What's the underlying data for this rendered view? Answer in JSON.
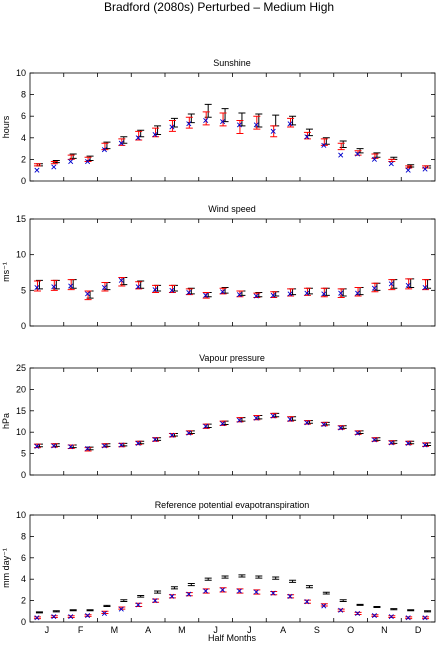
{
  "figure": {
    "title": "Bradford (2080s) Perturbed – Medium High",
    "xlabel": "Half Months",
    "month_labels": [
      "J",
      "F",
      "M",
      "A",
      "M",
      "J",
      "J",
      "A",
      "S",
      "O",
      "N",
      "D"
    ]
  },
  "colors": {
    "black_bar": "#000000",
    "red_bar": "#ff0000",
    "blue_cross": "#0000cc"
  },
  "chart_data": [
    {
      "type": "errorbar",
      "title": "Sunshine",
      "ylabel": "hours",
      "ylim": [
        0,
        10
      ],
      "yticks": [
        "0",
        "2",
        "4",
        "6",
        "8",
        "10"
      ],
      "x": [
        1,
        2,
        3,
        4,
        5,
        6,
        7,
        8,
        9,
        10,
        11,
        12,
        13,
        14,
        15,
        16,
        17,
        18,
        19,
        20,
        21,
        22,
        23,
        24
      ],
      "series": [
        {
          "name": "",
          "style": "black-errorbar",
          "values": [
            1.5,
            1.8,
            2.3,
            2.1,
            3.3,
            3.8,
            4.4,
            4.7,
            5.4,
            5.8,
            6.5,
            6.1,
            5.7,
            5.6,
            5.6,
            5.6,
            4.5,
            3.7,
            3.4,
            2.8,
            2.4,
            2.1,
            1.4,
            1.3
          ],
          "err": [
            0.1,
            0.1,
            0.2,
            0.2,
            0.3,
            0.3,
            0.3,
            0.4,
            0.4,
            0.4,
            0.6,
            0.6,
            0.6,
            0.6,
            0.5,
            0.4,
            0.3,
            0.3,
            0.3,
            0.2,
            0.2,
            0.1,
            0.1,
            0.1
          ]
        },
        {
          "name": "",
          "style": "red-errorbar",
          "values": [
            1.5,
            1.7,
            2.2,
            2.0,
            3.2,
            3.6,
            4.2,
            4.5,
            5.1,
            5.4,
            5.8,
            5.7,
            5.0,
            5.4,
            4.6,
            5.4,
            4.2,
            3.6,
            3.2,
            2.6,
            2.3,
            1.9,
            1.3,
            1.3
          ],
          "err": [
            0.1,
            0.1,
            0.2,
            0.2,
            0.3,
            0.3,
            0.4,
            0.4,
            0.5,
            0.5,
            0.6,
            0.6,
            0.6,
            0.6,
            0.5,
            0.4,
            0.3,
            0.3,
            0.3,
            0.2,
            0.2,
            0.1,
            0.1,
            0.1
          ]
        },
        {
          "name": "",
          "style": "blue-cross",
          "values": [
            1.0,
            1.3,
            1.8,
            1.8,
            2.9,
            3.5,
            4.0,
            4.3,
            5.0,
            5.3,
            5.6,
            5.5,
            5.2,
            5.2,
            4.6,
            5.3,
            4.1,
            3.3,
            2.4,
            2.5,
            2.0,
            1.6,
            1.0,
            1.1
          ]
        }
      ]
    },
    {
      "type": "errorbar",
      "title": "Wind speed",
      "ylabel": "ms⁻¹",
      "ylim": [
        0,
        15
      ],
      "yticks": [
        "0",
        "5",
        "10",
        "15"
      ],
      "x": [
        1,
        2,
        3,
        4,
        5,
        6,
        7,
        8,
        9,
        10,
        11,
        12,
        13,
        14,
        15,
        16,
        17,
        18,
        19,
        20,
        21,
        22,
        23,
        24
      ],
      "series": [
        {
          "name": "",
          "style": "black-errorbar",
          "values": [
            5.8,
            5.8,
            5.9,
            4.4,
            5.6,
            6.3,
            5.8,
            5.3,
            5.3,
            4.9,
            4.4,
            5.0,
            4.6,
            4.4,
            4.5,
            4.8,
            4.9,
            4.8,
            4.7,
            4.9,
            5.5,
            5.9,
            6.0,
            5.9
          ],
          "err": [
            0.6,
            0.6,
            0.6,
            0.5,
            0.5,
            0.5,
            0.5,
            0.4,
            0.4,
            0.4,
            0.3,
            0.4,
            0.3,
            0.3,
            0.3,
            0.4,
            0.4,
            0.5,
            0.5,
            0.5,
            0.5,
            0.6,
            0.6,
            0.6
          ]
        },
        {
          "name": "",
          "style": "red-errorbar",
          "values": [
            5.6,
            5.7,
            5.8,
            4.3,
            5.5,
            6.2,
            5.7,
            5.2,
            5.2,
            4.8,
            4.3,
            4.9,
            4.5,
            4.3,
            4.4,
            4.7,
            4.8,
            4.7,
            4.6,
            4.8,
            5.4,
            5.8,
            5.9,
            5.8
          ],
          "err": [
            0.7,
            0.7,
            0.7,
            0.6,
            0.6,
            0.6,
            0.5,
            0.5,
            0.5,
            0.4,
            0.4,
            0.4,
            0.4,
            0.3,
            0.4,
            0.5,
            0.5,
            0.6,
            0.6,
            0.6,
            0.6,
            0.7,
            0.7,
            0.7
          ]
        },
        {
          "name": "",
          "style": "blue-cross",
          "values": [
            5.4,
            5.5,
            5.6,
            4.5,
            5.4,
            6.4,
            5.5,
            5.1,
            5.0,
            4.7,
            4.3,
            4.8,
            4.4,
            4.2,
            4.3,
            4.5,
            4.6,
            4.5,
            4.6,
            4.6,
            5.3,
            5.9,
            5.7,
            5.4
          ]
        }
      ]
    },
    {
      "type": "errorbar",
      "title": "Vapour pressure",
      "ylabel": "hPa",
      "ylim": [
        0,
        25
      ],
      "yticks": [
        "0",
        "5",
        "10",
        "15",
        "20",
        "25"
      ],
      "x": [
        1,
        2,
        3,
        4,
        5,
        6,
        7,
        8,
        9,
        10,
        11,
        12,
        13,
        14,
        15,
        16,
        17,
        18,
        19,
        20,
        21,
        22,
        23,
        24
      ],
      "series": [
        {
          "name": "",
          "style": "black-errorbar",
          "values": [
            6.9,
            7.0,
            6.7,
            6.2,
            7.0,
            7.1,
            7.6,
            8.4,
            9.4,
            10.0,
            11.5,
            12.2,
            13.0,
            13.5,
            14.0,
            13.2,
            12.4,
            12.0,
            11.2,
            10.0,
            8.4,
            7.7,
            7.6,
            7.2
          ],
          "err": [
            0.3,
            0.3,
            0.3,
            0.3,
            0.3,
            0.3,
            0.3,
            0.3,
            0.3,
            0.3,
            0.4,
            0.4,
            0.4,
            0.4,
            0.4,
            0.4,
            0.3,
            0.3,
            0.3,
            0.3,
            0.3,
            0.3,
            0.3,
            0.3
          ]
        },
        {
          "name": "",
          "style": "red-errorbar",
          "values": [
            6.8,
            6.9,
            6.6,
            6.0,
            6.9,
            7.0,
            7.5,
            8.3,
            9.3,
            9.9,
            11.4,
            12.1,
            12.9,
            13.4,
            13.9,
            13.1,
            12.3,
            11.9,
            11.1,
            9.9,
            8.3,
            7.6,
            7.5,
            7.1
          ],
          "err": [
            0.4,
            0.4,
            0.4,
            0.4,
            0.4,
            0.4,
            0.4,
            0.4,
            0.4,
            0.4,
            0.5,
            0.5,
            0.5,
            0.5,
            0.5,
            0.5,
            0.4,
            0.4,
            0.4,
            0.4,
            0.4,
            0.4,
            0.4,
            0.4
          ]
        },
        {
          "name": "",
          "style": "blue-cross",
          "values": [
            6.7,
            6.8,
            6.6,
            6.2,
            6.8,
            7.0,
            7.4,
            8.3,
            9.3,
            9.8,
            11.4,
            12.0,
            12.8,
            13.3,
            13.8,
            13.0,
            12.2,
            11.8,
            11.0,
            9.8,
            8.2,
            7.5,
            7.4,
            7.0
          ]
        }
      ]
    },
    {
      "type": "errorbar",
      "title": "Reference potential evapotranspiration",
      "ylabel": "mm day⁻¹",
      "ylim": [
        0,
        10
      ],
      "yticks": [
        "0",
        "2",
        "4",
        "6",
        "8",
        "10"
      ],
      "x": [
        1,
        2,
        3,
        4,
        5,
        6,
        7,
        8,
        9,
        10,
        11,
        12,
        13,
        14,
        15,
        16,
        17,
        18,
        19,
        20,
        21,
        22,
        23,
        24
      ],
      "series": [
        {
          "name": "",
          "style": "black-errorbar",
          "values": [
            0.9,
            1.0,
            1.1,
            1.1,
            1.5,
            2.0,
            2.4,
            2.8,
            3.2,
            3.5,
            4.0,
            4.2,
            4.3,
            4.2,
            4.1,
            3.8,
            3.3,
            2.7,
            2.0,
            1.6,
            1.4,
            1.2,
            1.1,
            1.0
          ],
          "err": [
            0.05,
            0.05,
            0.05,
            0.05,
            0.05,
            0.08,
            0.08,
            0.1,
            0.1,
            0.1,
            0.1,
            0.1,
            0.1,
            0.1,
            0.1,
            0.1,
            0.1,
            0.08,
            0.08,
            0.05,
            0.05,
            0.05,
            0.05,
            0.05
          ]
        },
        {
          "name": "",
          "style": "red-errorbar",
          "values": [
            0.4,
            0.5,
            0.5,
            0.6,
            0.9,
            1.3,
            1.6,
            2.0,
            2.4,
            2.6,
            2.9,
            3.0,
            2.9,
            2.8,
            2.7,
            2.4,
            1.9,
            1.6,
            1.1,
            0.8,
            0.6,
            0.5,
            0.4,
            0.4
          ],
          "err": [
            0.08,
            0.08,
            0.08,
            0.08,
            0.1,
            0.1,
            0.15,
            0.15,
            0.15,
            0.15,
            0.2,
            0.2,
            0.2,
            0.2,
            0.15,
            0.15,
            0.15,
            0.1,
            0.1,
            0.1,
            0.08,
            0.08,
            0.08,
            0.08
          ]
        },
        {
          "name": "",
          "style": "blue-cross",
          "values": [
            0.4,
            0.5,
            0.5,
            0.6,
            0.8,
            1.2,
            1.6,
            2.0,
            2.4,
            2.6,
            2.9,
            3.0,
            2.9,
            2.8,
            2.7,
            2.4,
            1.9,
            1.5,
            1.1,
            0.8,
            0.6,
            0.5,
            0.4,
            0.4
          ]
        }
      ]
    }
  ]
}
